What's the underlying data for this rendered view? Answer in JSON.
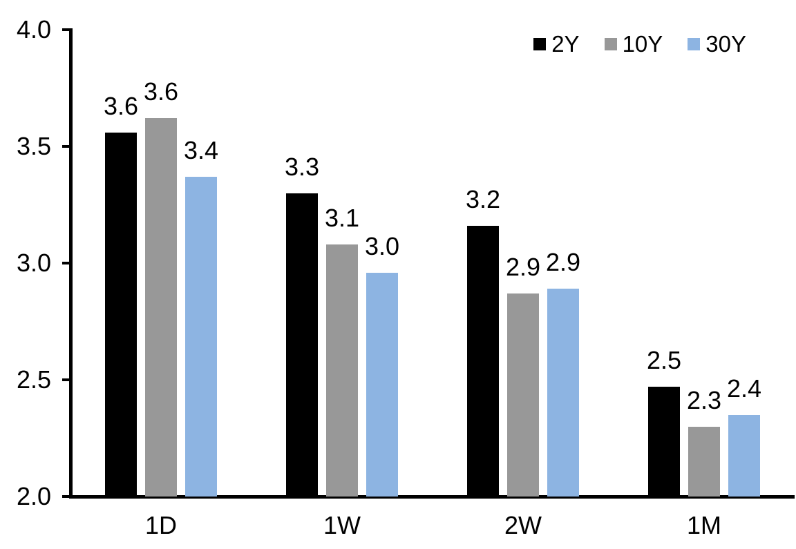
{
  "chart_data": {
    "type": "bar",
    "title": "",
    "xlabel": "",
    "ylabel": "",
    "categories": [
      "1D",
      "1W",
      "2W",
      "1M"
    ],
    "series": [
      {
        "name": "2Y",
        "color": "#000000",
        "values": [
          3.56,
          3.3,
          3.16,
          2.47
        ],
        "labels": [
          "3.6",
          "3.3",
          "3.2",
          "2.5"
        ]
      },
      {
        "name": "10Y",
        "color": "#989898",
        "values": [
          3.62,
          3.08,
          2.87,
          2.3
        ],
        "labels": [
          "3.6",
          "3.1",
          "2.9",
          "2.3"
        ]
      },
      {
        "name": "30Y",
        "color": "#8DB4E2",
        "values": [
          3.37,
          2.96,
          2.89,
          2.35
        ],
        "labels": [
          "3.4",
          "3.0",
          "2.9",
          "2.4"
        ]
      }
    ],
    "ylim": [
      2.0,
      4.0
    ],
    "ytick_step": 0.5,
    "ytick_labels": [
      "2.0",
      "2.5",
      "3.0",
      "3.5",
      "4.0"
    ],
    "grid": false,
    "legend_position": "top-right",
    "colors": {
      "axis": "#000000",
      "text": "#000000",
      "background": "#ffffff"
    }
  }
}
